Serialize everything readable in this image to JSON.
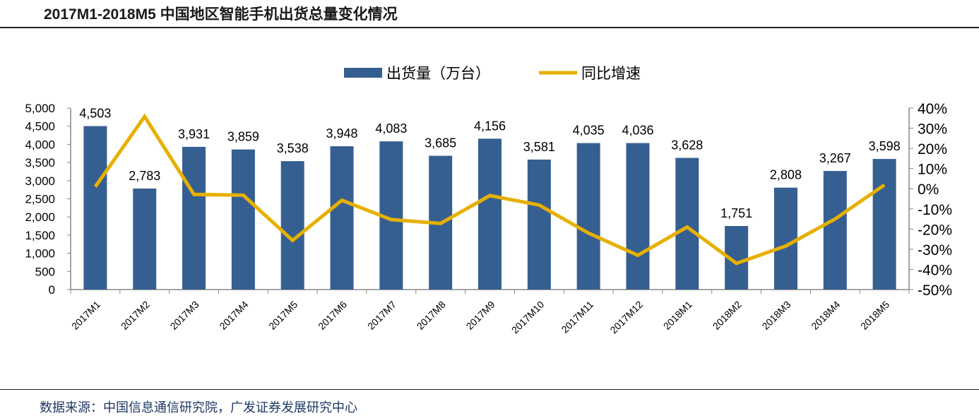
{
  "title": "2017M1-2018M5 中国地区智能手机出货总量变化情况",
  "source": "数据来源：中国信息通信研究院，广发证券发展研究中心",
  "colors": {
    "bar": "#365f91",
    "line": "#e6b000"
  },
  "chart_data": {
    "type": "bar+line",
    "categories": [
      "2017M1",
      "2017M2",
      "2017M3",
      "2017M4",
      "2017M5",
      "2017M6",
      "2017M7",
      "2017M8",
      "2017M9",
      "2017M10",
      "2017M11",
      "2017M12",
      "2018M1",
      "2018M2",
      "2018M3",
      "2018M4",
      "2018M5"
    ],
    "series": [
      {
        "name": "出货量（万台）",
        "type": "bar",
        "axis": "left",
        "values": [
          4503,
          2783,
          3931,
          3859,
          3538,
          3948,
          4083,
          3685,
          4156,
          3581,
          4035,
          4036,
          3628,
          1751,
          2808,
          3267,
          3598
        ],
        "labels": [
          "4,503",
          "2,783",
          "3,931",
          "3,859",
          "3,538",
          "3,948",
          "4,083",
          "3,685",
          "4,156",
          "3,581",
          "4,035",
          "4,036",
          "3,628",
          "1,751",
          "2,808",
          "3,267",
          "3,598"
        ]
      },
      {
        "name": "同比增速",
        "type": "line",
        "axis": "right",
        "values": [
          1,
          35.8,
          -2.8,
          -3.2,
          -25.6,
          -5.7,
          -15.3,
          -17.2,
          -3.4,
          -8.1,
          -22,
          -33,
          -19,
          -37,
          -28.4,
          -15,
          1.9
        ]
      }
    ],
    "ylim_left": [
      0,
      5000
    ],
    "yticks_left": [
      "0",
      "500",
      "1,000",
      "1,500",
      "2,000",
      "2,500",
      "3,000",
      "3,500",
      "4,000",
      "4,500",
      "5,000"
    ],
    "ylim_right": [
      -50,
      40
    ],
    "yticks_right": [
      "-50%",
      "-40%",
      "-30%",
      "-20%",
      "-10%",
      "0%",
      "10%",
      "20%",
      "30%",
      "40%"
    ],
    "legend": "top-center",
    "grid": false
  }
}
